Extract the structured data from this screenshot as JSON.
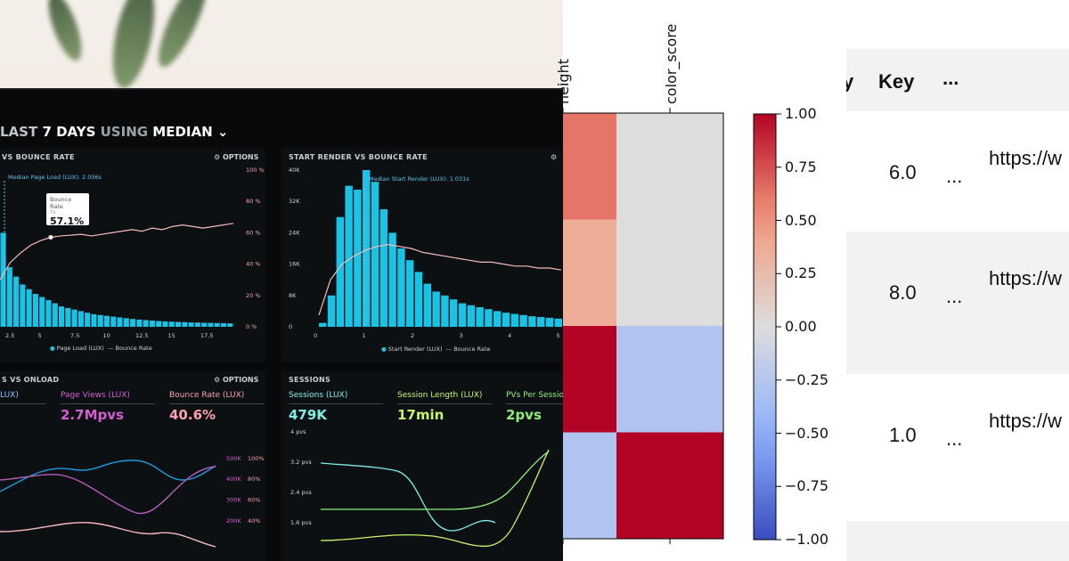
{
  "dashboard": {
    "header": {
      "prefix": "LAST",
      "days": "7 DAYS",
      "using": "USING",
      "stat": "MEDIAN"
    },
    "panels": {
      "page_load": {
        "title": "VS BOUNCE RATE",
        "options": "OPTIONS",
        "median_label": "Median Page Load (LUX): 2.056s",
        "tooltip_title": "Bounce Rate",
        "tooltip_sub": "7s",
        "tooltip_value": "57.1%",
        "y_right": [
          "100 %",
          "80 %",
          "60 %",
          "40 %",
          "20 %",
          "0 %"
        ],
        "x_ticks": [
          "2.5",
          "5",
          "7.5",
          "10",
          "12.5",
          "15",
          "17.5"
        ],
        "legend": [
          "Page Load (LUX)",
          "Bounce Rate"
        ],
        "bars": [
          60,
          38,
          32,
          27,
          24,
          21,
          19,
          17,
          15,
          13,
          12,
          11,
          10,
          9,
          8,
          7.5,
          7,
          6.5,
          6,
          5.5,
          5,
          4.6,
          4.3,
          4,
          3.7,
          3.5,
          3.3,
          3.1,
          3,
          2.8,
          2.7,
          2.6,
          2.5,
          2.4,
          2.3,
          2.2
        ],
        "line": [
          30,
          41,
          47,
          52,
          55,
          57.1,
          58,
          58.5,
          59,
          58,
          59,
          60,
          61,
          62,
          61,
          63,
          62,
          64,
          65,
          64,
          63,
          64,
          65,
          66
        ]
      },
      "start_render": {
        "title": "START RENDER VS BOUNCE RATE",
        "median_label": "Median Start Render (LUX): 1.031s",
        "y_left": [
          "40K",
          "32K",
          "24K",
          "16K",
          "8K",
          "0"
        ],
        "x_ticks": [
          "0",
          "1",
          "2",
          "3",
          "4",
          "5"
        ],
        "legend": [
          "Start Render (LUX)",
          "Bounce Rate"
        ],
        "bars": [
          1,
          8,
          28,
          36,
          35,
          40,
          37,
          30,
          24,
          20,
          17,
          14,
          11,
          9,
          8,
          7,
          6,
          5.5,
          5,
          4.5,
          4,
          3.6,
          3.3,
          3,
          2.7,
          2.5,
          2.3,
          2.1,
          2,
          1.8
        ],
        "line": [
          3,
          12,
          16,
          18,
          19.5,
          20.5,
          21,
          20.5,
          20,
          19,
          18.5,
          18,
          17.5,
          17,
          16.5,
          16.5,
          16,
          15.5,
          15.5,
          15,
          15,
          14.5
        ]
      },
      "onload": {
        "title": "S VS ONLOAD",
        "options": "OPTIONS",
        "metrics": [
          {
            "label": "LUX)",
            "value": "",
            "color": "#7ec8ff"
          },
          {
            "label": "Page Views (LUX)",
            "value": "2.7Mpvs",
            "color": "#d55fd2"
          },
          {
            "label": "Bounce Rate (LUX)",
            "value": "40.6%",
            "color": "#ff9fb0"
          }
        ],
        "y_right1": [
          "500K",
          "400K",
          "300K",
          "200K"
        ],
        "y_right2": [
          "100%",
          "80%",
          "60%",
          "40%"
        ]
      },
      "sessions": {
        "title": "SESSIONS",
        "metrics": [
          {
            "label": "Sessions (LUX)",
            "value": "479K",
            "color": "#7ef0e6"
          },
          {
            "label": "Session Length (LUX)",
            "value": "17min",
            "color": "#c9f56b"
          },
          {
            "label": "PVs Per Sessio",
            "value": "2pvs",
            "color": "#8df07a"
          }
        ],
        "y_left": [
          "4 pvs",
          "3.2 pvs",
          "2.4 pvs",
          "1.6 pvs"
        ]
      }
    },
    "colors": {
      "cyan": "#19c3e6",
      "pink": "#f7b9c0",
      "blue": "#1b9be0"
    }
  },
  "heatmap": {
    "col_labels": [
      "height",
      "color_score"
    ],
    "cells": [
      [
        0.62,
        0.0
      ],
      [
        0.36,
        0.0
      ],
      [
        1.0,
        -0.28
      ],
      [
        -0.28,
        1.0
      ]
    ],
    "colorbar_ticks": [
      "1.00",
      "0.75",
      "0.50",
      "0.25",
      "0.00",
      "−0.25",
      "−0.50",
      "−0.75",
      "−1.00"
    ]
  },
  "table": {
    "headers": [
      "Key",
      "..."
    ],
    "rows": [
      {
        "key": "6.0",
        "more": "...",
        "url": "https://w"
      },
      {
        "key": "8.0",
        "more": "...",
        "url": "https://w"
      },
      {
        "key": "1.0",
        "more": "...",
        "url": "https://w"
      }
    ]
  }
}
